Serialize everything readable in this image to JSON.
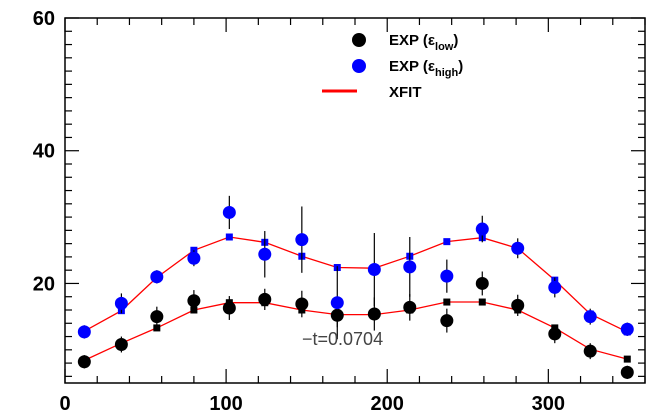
{
  "chart_data": {
    "type": "scatter",
    "xlim": [
      0,
      360
    ],
    "ylim": [
      5,
      60
    ],
    "x_ticks": [
      "0",
      "100",
      "200",
      "300"
    ],
    "x_tick_values": [
      0,
      100,
      200,
      300
    ],
    "y_ticks": [
      "20",
      "40",
      "60"
    ],
    "y_tick_values": [
      20,
      40,
      60
    ],
    "grid": false,
    "legend_position": "top-right",
    "legend": [
      {
        "name": "EXP (",
        "sym": "ε",
        "sub": "low",
        "close": ")"
      },
      {
        "name": "EXP (",
        "sym": "ε",
        "sub": "high",
        "close": ")"
      },
      {
        "name": "XFIT",
        "sym": "",
        "sub": "",
        "close": ""
      }
    ],
    "annotation": "−t=0.0704",
    "series": [
      {
        "marker": "circle",
        "color": "#000000",
        "x": [
          12,
          35,
          57,
          80,
          102,
          124,
          147,
          169,
          192,
          214,
          237,
          259,
          281,
          304,
          326,
          349
        ],
        "y": [
          8.2,
          10.8,
          15.0,
          17.4,
          16.3,
          17.6,
          16.9,
          15.2,
          15.4,
          16.4,
          14.4,
          20.0,
          16.7,
          12.4,
          9.8,
          6.6
        ],
        "err": [
          1.0,
          1.2,
          1.5,
          1.6,
          1.8,
          1.6,
          2.0,
          1.8,
          2.5,
          2.0,
          1.8,
          1.8,
          1.6,
          1.4,
          1.2,
          1.0
        ]
      },
      {
        "marker": "circle",
        "color": "#0000ff",
        "x": [
          12,
          35,
          57,
          80,
          102,
          124,
          147,
          169,
          192,
          214,
          237,
          259,
          281,
          304,
          326,
          349
        ],
        "y": [
          12.7,
          17.0,
          21.0,
          23.8,
          30.7,
          24.4,
          26.6,
          17.1,
          22.1,
          22.5,
          21.1,
          28.2,
          25.3,
          19.4,
          15.0,
          13.1
        ],
        "err": [
          1.0,
          1.5,
          1.0,
          1.2,
          2.5,
          3.5,
          5.0,
          5.5,
          5.5,
          4.5,
          2.5,
          2.0,
          1.5,
          1.5,
          1.2,
          1.0
        ]
      },
      {
        "marker": "square",
        "color": "#0000ff",
        "x": [
          12,
          35,
          57,
          80,
          102,
          124,
          147,
          169,
          192,
          214,
          237,
          259,
          281,
          304,
          326,
          349
        ],
        "y": [
          12.8,
          15.9,
          20.9,
          25.0,
          27.0,
          26.2,
          24.1,
          22.4,
          22.3,
          24.1,
          26.3,
          26.9,
          25.3,
          20.5,
          15.4,
          12.7
        ]
      },
      {
        "marker": "square",
        "color": "#000000",
        "x": [
          12,
          35,
          57,
          80,
          102,
          124,
          147,
          169,
          192,
          214,
          237,
          259,
          281,
          304,
          326,
          349
        ],
        "y": [
          8.4,
          11.0,
          13.3,
          16.0,
          17.1,
          17.1,
          16.0,
          15.3,
          15.3,
          16.0,
          17.2,
          17.2,
          16.0,
          13.3,
          10.1,
          8.6
        ]
      },
      {
        "marker": "line",
        "color": "#ff0000",
        "x": [
          12,
          35,
          57,
          80,
          102,
          124,
          147,
          169,
          192,
          214,
          237,
          259,
          281,
          304,
          326,
          349
        ],
        "y": [
          12.8,
          15.9,
          20.9,
          25.0,
          27.0,
          26.2,
          24.1,
          22.4,
          22.3,
          24.1,
          26.3,
          26.9,
          25.3,
          20.5,
          15.4,
          12.7
        ]
      },
      {
        "marker": "line",
        "color": "#ff0000",
        "x": [
          12,
          35,
          57,
          80,
          102,
          124,
          147,
          169,
          192,
          214,
          237,
          259,
          281,
          304,
          326,
          349
        ],
        "y": [
          8.4,
          11.0,
          13.3,
          16.0,
          17.1,
          17.1,
          16.0,
          15.3,
          15.3,
          16.0,
          17.2,
          17.2,
          16.0,
          13.3,
          10.1,
          8.6
        ]
      }
    ]
  }
}
